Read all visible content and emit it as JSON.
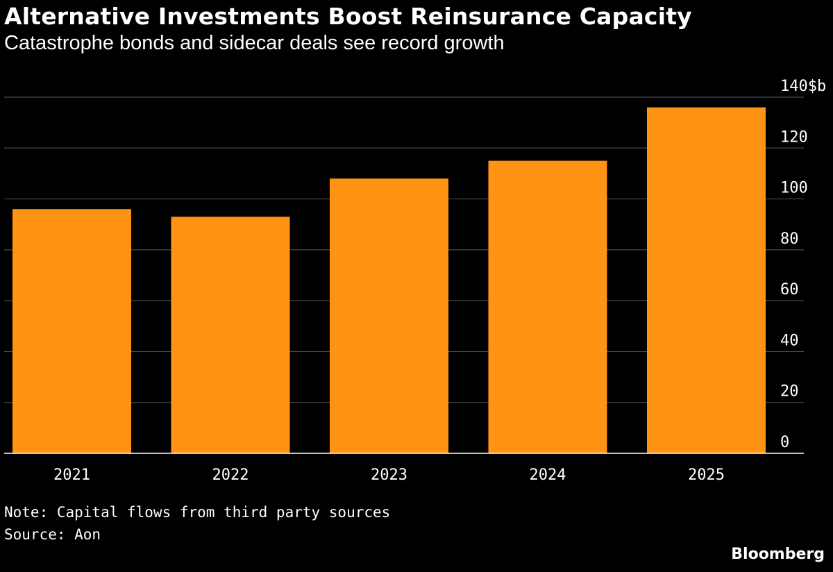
{
  "header": {
    "title": "Alternative Investments Boost Reinsurance Capacity",
    "subtitle": "Catastrophe bonds and sidecar deals see record growth"
  },
  "footer": {
    "note": "Note: Capital flows from third party sources",
    "source": "Source: Aon",
    "brand": "Bloomberg"
  },
  "colors": {
    "background": "#000000",
    "bar": "#ff9314",
    "grid": "#4a4a4a",
    "axis": "#ffffff",
    "text": "#ffffff"
  },
  "chart_data": {
    "type": "bar",
    "title": "Alternative Investments Boost Reinsurance Capacity",
    "subtitle": "Catastrophe bonds and sidecar deals see record growth",
    "categories": [
      "2021",
      "2022",
      "2023",
      "2024",
      "2025"
    ],
    "values": [
      96,
      93,
      108,
      115,
      136
    ],
    "ylim": [
      0,
      140
    ],
    "yticks": [
      0,
      20,
      40,
      60,
      80,
      100,
      120,
      140
    ],
    "y_unit_label": "$b",
    "yaxis_position": "right",
    "grid": true,
    "legend": "none"
  }
}
